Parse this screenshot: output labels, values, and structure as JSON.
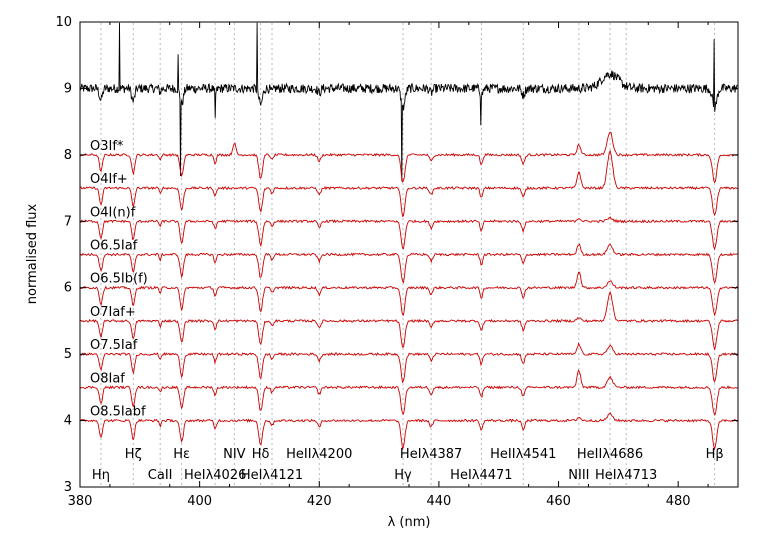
{
  "chart_data": {
    "type": "line",
    "xlabel": "λ (nm)",
    "ylabel": "normalised flux",
    "xlim": [
      380,
      490
    ],
    "ylim": [
      3,
      10
    ],
    "x_ticks": [
      380,
      400,
      420,
      440,
      460,
      480
    ],
    "y_ticks": [
      3,
      4,
      5,
      6,
      7,
      8,
      9,
      10
    ],
    "grid": false,
    "colors": {
      "observed": "#000000",
      "templates": "#cc0000",
      "marker": "#b0b0b0"
    },
    "line_markers": [
      {
        "label": "Hη",
        "wavelength": 383.5,
        "row": 2
      },
      {
        "label": "Hζ",
        "wavelength": 388.9,
        "row": 1
      },
      {
        "label": "CaII",
        "wavelength": 393.4,
        "row": 2
      },
      {
        "label": "Hε",
        "wavelength": 397.0,
        "row": 1
      },
      {
        "label": "HeIλ4026",
        "wavelength": 402.6,
        "row": 2
      },
      {
        "label": "NIV",
        "wavelength": 405.8,
        "row": 1
      },
      {
        "label": "Hδ",
        "wavelength": 410.2,
        "row": 1
      },
      {
        "label": "HeIλ4121",
        "wavelength": 412.1,
        "row": 2
      },
      {
        "label": "HeIIλ4200",
        "wavelength": 420.0,
        "row": 1
      },
      {
        "label": "Hγ",
        "wavelength": 434.0,
        "row": 2
      },
      {
        "label": "HeIλ4387",
        "wavelength": 438.7,
        "row": 1
      },
      {
        "label": "HeIλ4471",
        "wavelength": 447.1,
        "row": 2
      },
      {
        "label": "HeIIλ4541",
        "wavelength": 454.1,
        "row": 1
      },
      {
        "label": "NIII",
        "wavelength": 463.4,
        "row": 2
      },
      {
        "label": "HeIIλ4686",
        "wavelength": 468.6,
        "row": 1
      },
      {
        "label": "HeIλ4713",
        "wavelength": 471.3,
        "row": 2
      },
      {
        "label": "Hβ",
        "wavelength": 486.1,
        "row": 1
      }
    ],
    "series": [
      {
        "kind": "observed",
        "offset": 9.0
      },
      {
        "name": "O3If*",
        "offset": 8.0,
        "kind": "template"
      },
      {
        "name": "O4If+",
        "offset": 7.5,
        "kind": "template"
      },
      {
        "name": "O4I(n)f",
        "offset": 7.0,
        "kind": "template"
      },
      {
        "name": "O6.5Iaf",
        "offset": 6.5,
        "kind": "template"
      },
      {
        "name": "O6.5Ib(f)",
        "offset": 6.0,
        "kind": "template"
      },
      {
        "name": "O7Iaf+",
        "offset": 5.5,
        "kind": "template"
      },
      {
        "name": "O7.5Iaf",
        "offset": 5.0,
        "kind": "template"
      },
      {
        "name": "O8Iaf",
        "offset": 4.5,
        "kind": "template"
      },
      {
        "name": "O8.5Iabf",
        "offset": 4.0,
        "kind": "template"
      }
    ]
  }
}
